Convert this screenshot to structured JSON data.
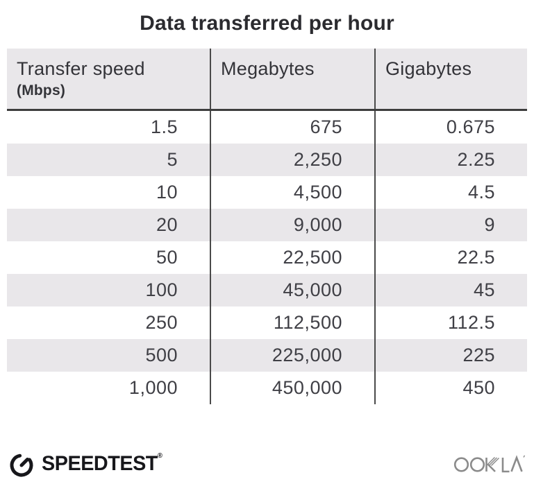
{
  "title": "Data transferred per hour",
  "table": {
    "columns": [
      {
        "label": "Transfer speed",
        "sublabel": "(Mbps)"
      },
      {
        "label": "Megabytes"
      },
      {
        "label": "Gigabytes"
      }
    ],
    "rows": [
      [
        "1.5",
        "675",
        "0.675"
      ],
      [
        "5",
        "2,250",
        "2.25"
      ],
      [
        "10",
        "4,500",
        "4.5"
      ],
      [
        "20",
        "9,000",
        "9"
      ],
      [
        "50",
        "22,500",
        "22.5"
      ],
      [
        "100",
        "45,000",
        "45"
      ],
      [
        "250",
        "112,500",
        "112.5"
      ],
      [
        "500",
        "225,000",
        "225"
      ],
      [
        "1,000",
        "450,000",
        "450"
      ]
    ]
  },
  "footer": {
    "speedtest_label": "SPEEDTEST",
    "speedtest_trademark": "®",
    "ookla_label": "OOKLA"
  },
  "colors": {
    "stripe_gray": "#e9e7ea",
    "divider_dark": "#4a4a4a",
    "header_rule": "#3d3d3d",
    "title_text": "#2b2b2f",
    "cell_text": "#3f3f45",
    "speedtest_black": "#17171b",
    "ookla_gray": "#8b8b8b"
  },
  "chart_data": {
    "type": "table",
    "title": "Data transferred per hour",
    "columns": [
      "Transfer speed (Mbps)",
      "Megabytes",
      "Gigabytes"
    ],
    "rows": [
      [
        1.5,
        675,
        0.675
      ],
      [
        5,
        2250,
        2.25
      ],
      [
        10,
        4500,
        4.5
      ],
      [
        20,
        9000,
        9
      ],
      [
        50,
        22500,
        22.5
      ],
      [
        100,
        45000,
        45
      ],
      [
        250,
        112500,
        112.5
      ],
      [
        500,
        225000,
        225
      ],
      [
        1000,
        450000,
        450
      ]
    ]
  }
}
